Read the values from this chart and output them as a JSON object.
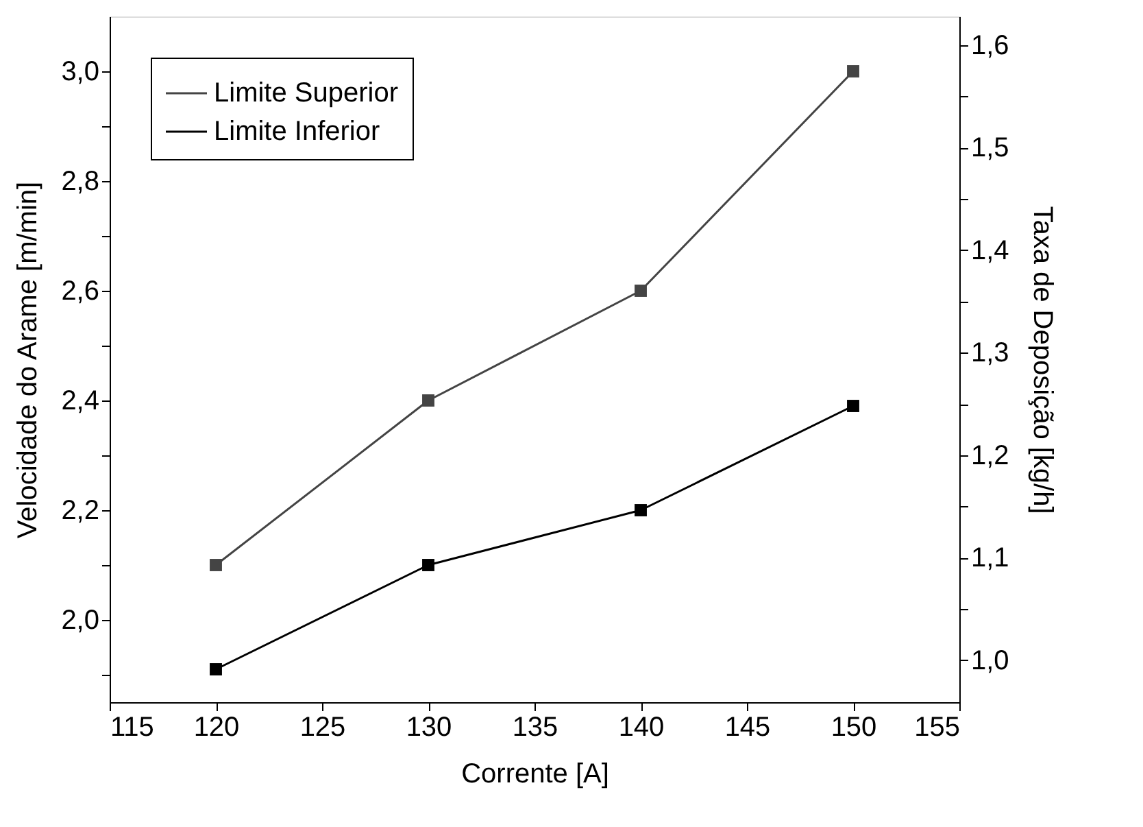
{
  "chart_data": {
    "type": "line",
    "xlabel": "Corrente [A]",
    "ylabel": "Velocidade do Arame [m/min]",
    "y2label": "Taxa de Deposição [kg/h]",
    "x": [
      120,
      130,
      140,
      150
    ],
    "series": [
      {
        "name": "Limite Superior",
        "color": "#444444",
        "values": [
          2.1,
          2.4,
          2.6,
          3.0
        ]
      },
      {
        "name": "Limite Inferior",
        "color": "#000000",
        "values": [
          1.91,
          2.1,
          2.2,
          2.39
        ]
      }
    ],
    "xlim": [
      115,
      155
    ],
    "xticks": [
      115,
      120,
      125,
      130,
      135,
      140,
      145,
      150,
      155
    ],
    "ylim": [
      1.85,
      3.1
    ],
    "yticks": [
      {
        "value": 1.9,
        "label": null
      },
      {
        "value": 2.0,
        "label": "2,0"
      },
      {
        "value": 2.1,
        "label": null
      },
      {
        "value": 2.2,
        "label": "2,2"
      },
      {
        "value": 2.3,
        "label": null
      },
      {
        "value": 2.4,
        "label": "2,4"
      },
      {
        "value": 2.5,
        "label": null
      },
      {
        "value": 2.6,
        "label": "2,6"
      },
      {
        "value": 2.7,
        "label": null
      },
      {
        "value": 2.8,
        "label": "2,8"
      },
      {
        "value": 2.9,
        "label": null
      },
      {
        "value": 3.0,
        "label": "3,0"
      }
    ],
    "y2lim": [
      0.959,
      1.628
    ],
    "y2ticks": [
      {
        "value": 1.0,
        "label": "1,0"
      },
      {
        "value": 1.05,
        "label": null
      },
      {
        "value": 1.1,
        "label": "1,1"
      },
      {
        "value": 1.15,
        "label": null
      },
      {
        "value": 1.2,
        "label": "1,2"
      },
      {
        "value": 1.25,
        "label": null
      },
      {
        "value": 1.3,
        "label": "1,3"
      },
      {
        "value": 1.35,
        "label": null
      },
      {
        "value": 1.4,
        "label": "1,4"
      },
      {
        "value": 1.45,
        "label": null
      },
      {
        "value": 1.5,
        "label": "1,5"
      },
      {
        "value": 1.55,
        "label": null
      },
      {
        "value": 1.6,
        "label": "1,6"
      }
    ],
    "grid": false,
    "legend": "top left",
    "marker": "square",
    "line_style": "solid"
  }
}
